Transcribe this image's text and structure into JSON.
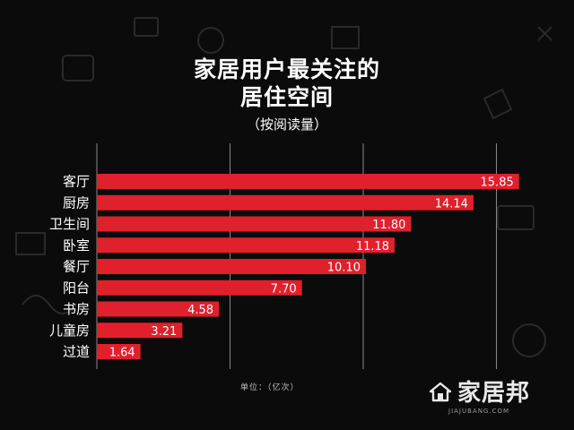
{
  "header": {
    "title_line1": "家居用户最关注的",
    "title_line2": "居住空间",
    "subtitle": "（按阅读量）"
  },
  "unit_label": "单位：（亿次）",
  "brand": {
    "name": "家居邦",
    "url": "JIAJUBANG.COM"
  },
  "colors": {
    "bar": "#e0202c",
    "background": "#0b0b0b",
    "grid": "#888888"
  },
  "chart_data": {
    "type": "bar",
    "orientation": "horizontal",
    "title": "家居用户最关注的居住空间",
    "subtitle": "（按阅读量）",
    "unit": "单位：（亿次）",
    "categories": [
      "客厅",
      "厨房",
      "卫生间",
      "卧室",
      "餐厅",
      "阳台",
      "书房",
      "儿童房",
      "过道"
    ],
    "values": [
      15.85,
      14.14,
      11.8,
      11.18,
      10.1,
      7.7,
      4.58,
      3.21,
      1.64
    ],
    "value_labels": [
      "15.85",
      "14.14",
      "11.80",
      "11.18",
      "10.10",
      "7.70",
      "4.58",
      "3.21",
      "1.64"
    ],
    "xlim": [
      0,
      16
    ],
    "grid": true,
    "gridlines_at": [
      5,
      10,
      15
    ]
  }
}
